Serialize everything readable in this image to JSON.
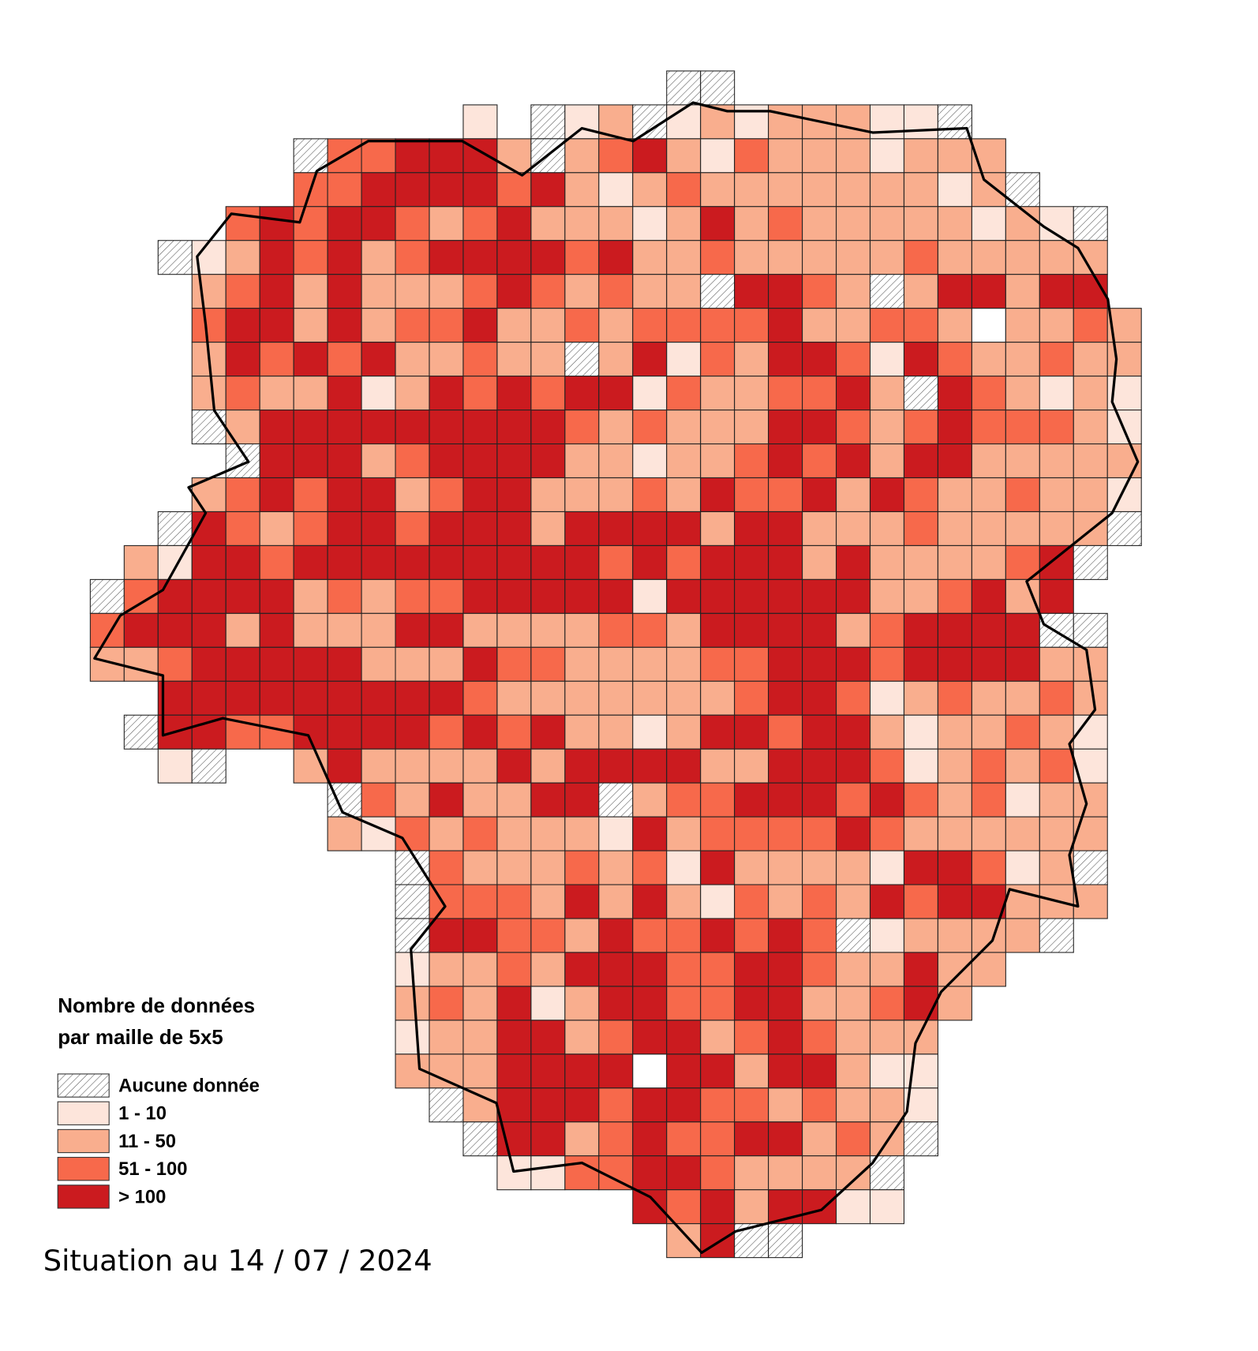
{
  "legend": {
    "title_lines": [
      "Nombre de données",
      "par maille de 5x5"
    ],
    "items": [
      {
        "label": "Aucune donnée",
        "color": "hatch"
      },
      {
        "label": "1 - 10",
        "color": "#fde5db"
      },
      {
        "label": "11 - 50",
        "color": "#f9ae8e"
      },
      {
        "label": "51 - 100",
        "color": "#f7694b"
      },
      {
        "label": "> 100",
        "color": "#cb1b1f"
      }
    ]
  },
  "footer": "Situation au 14 / 07 / 2024",
  "map": {
    "rows": [
      ".................hh",
      "...........1.h12h12122211h",
      "......h334442h2342132221222",
      "......334444342123222222212h",
      "....3434432342221242322222121h",
      "..h124342344443422322222322222",
      "...234242223432322h4432h244244",
      "...3442423342232333342233202232",
      "...24343422322h2413244314322322",
      "...232241243434413223342h432121",
      "...h244444444432322244323433321",
      "....h44423444422122343424422222",
      "...2343442344222324334243223221",
      "..h432344344424444244222322222h",
      ".2144344444444434344424222234h",
      "h3444423233444441444444223424",
      "3444242224422223324444234444hh",
      "223444442224332222334443444422",
      "..4444444443222222234431232232",
      ".h4433444434342212443442122321",
      "..1h..242222424444224443123231",
      ".......h3242244h23344434323122",
      ".......21323222142333343222222",
      ".........h3222323142222144312h",
      ".........h33324242132324344222",
      ".........h443324334343h12222h",
      ".........122324443344322422",
      ".........23241244334422342",
      ".........1224423442343222",
      ".........2224444044244211",
      "..........h24443443323221",
      "...........h442343344232h",
      "............11334432222h",
      "................43424411",
      ".................24hh"
    ]
  }
}
